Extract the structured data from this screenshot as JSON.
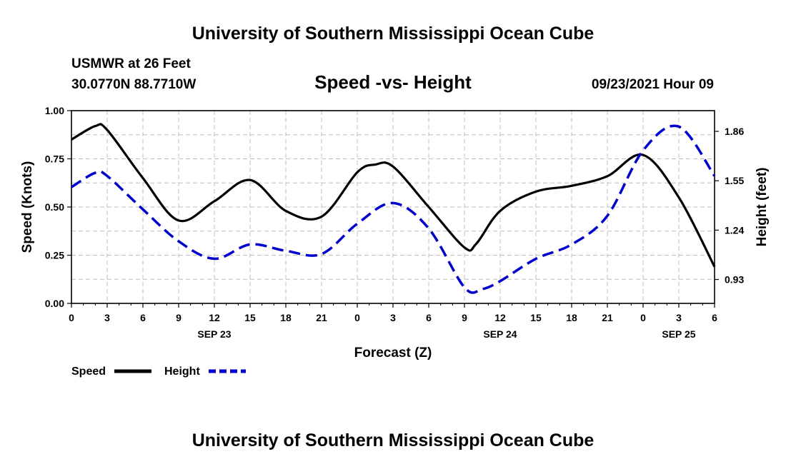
{
  "chart_data": {
    "type": "line",
    "title": "University of Southern Mississippi Ocean Cube",
    "footer_title": "University of Southern Mississippi Ocean Cube",
    "station": "USMWR at 26 Feet",
    "location": "30.0770N  88.7710W",
    "subtitle": "Speed -vs- Height",
    "timestamp": "09/23/2021 Hour 09",
    "xlabel": "Forecast (Z)",
    "ylabel_left": "Speed (Knots)",
    "ylabel_right": "Height (feet)",
    "x_range": [
      0,
      54
    ],
    "x_tick_values": [
      0,
      3,
      6,
      9,
      12,
      15,
      18,
      21,
      24,
      27,
      30,
      33,
      36,
      39,
      42,
      45,
      48,
      51,
      54
    ],
    "x_tick_labels": [
      "0",
      "3",
      "6",
      "9",
      "12",
      "15",
      "18",
      "21",
      "0",
      "3",
      "6",
      "9",
      "12",
      "15",
      "18",
      "21",
      "0",
      "3",
      "6"
    ],
    "day_labels": [
      {
        "x": 12,
        "label": "SEP 23"
      },
      {
        "x": 36,
        "label": "SEP 24"
      },
      {
        "x": 51,
        "label": "SEP 25"
      }
    ],
    "left_axis": {
      "range": [
        0,
        1
      ],
      "ticks": [
        0,
        0.25,
        0.5,
        0.75,
        1.0
      ],
      "tick_labels": [
        "0.00",
        "0.25",
        "0.50",
        "0.75",
        "1.00"
      ]
    },
    "right_axis": {
      "range": [
        0.78,
        1.99
      ],
      "ticks": [
        0.93,
        1.24,
        1.55,
        1.86
      ],
      "tick_labels": [
        "0.93",
        "1.24",
        "1.55",
        "1.86"
      ]
    },
    "grid": true,
    "series": [
      {
        "name": "Speed",
        "axis": "left",
        "color": "#000000",
        "style": "solid",
        "x": [
          0,
          2,
          3,
          6,
          9,
          12,
          15,
          18,
          21,
          24,
          25.5,
          27,
          30,
          33,
          34,
          36,
          39,
          42,
          45,
          48,
          51,
          54
        ],
        "values": [
          0.85,
          0.92,
          0.9,
          0.65,
          0.43,
          0.53,
          0.64,
          0.48,
          0.45,
          0.68,
          0.72,
          0.71,
          0.5,
          0.29,
          0.31,
          0.48,
          0.58,
          0.61,
          0.66,
          0.77,
          0.55,
          0.19
        ]
      },
      {
        "name": "Height",
        "axis": "right",
        "color": "#0000cc",
        "style": "dashed",
        "x": [
          0,
          2,
          3,
          6,
          9,
          12,
          15,
          18,
          21,
          24,
          27,
          30,
          33,
          34.5,
          36,
          39,
          42,
          45,
          48,
          51,
          54
        ],
        "values": [
          1.51,
          1.6,
          1.58,
          1.37,
          1.17,
          1.06,
          1.15,
          1.11,
          1.09,
          1.28,
          1.41,
          1.25,
          0.88,
          0.87,
          0.92,
          1.06,
          1.15,
          1.33,
          1.74,
          1.89,
          1.58
        ]
      }
    ],
    "legend": {
      "placement": "bottom-left",
      "items": [
        "Speed",
        "Height"
      ]
    }
  }
}
